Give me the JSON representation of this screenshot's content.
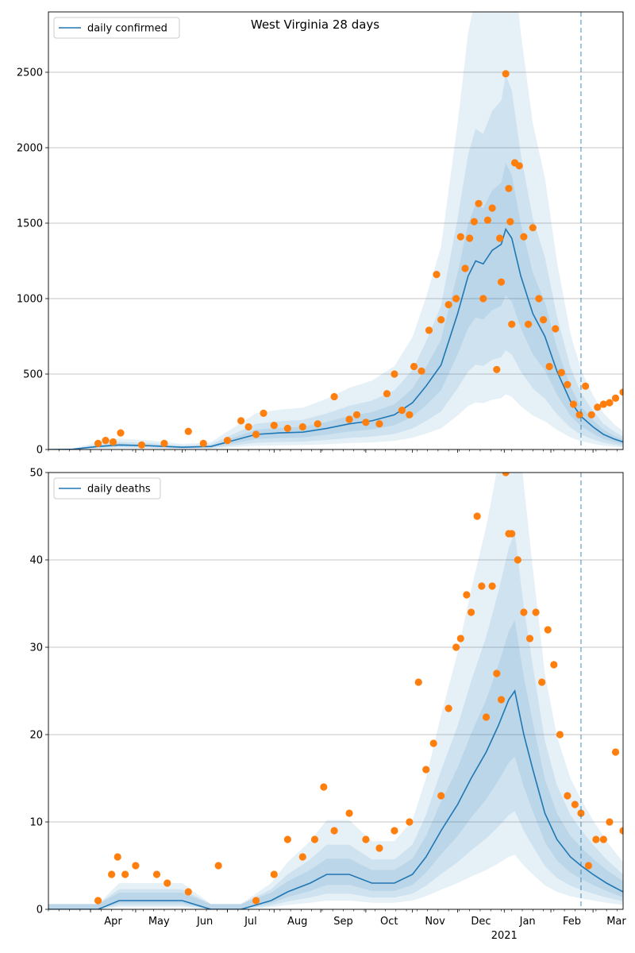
{
  "chart_data": [
    {
      "type": "line",
      "title": "West Virginia 28 days",
      "xlabel": "",
      "ylabel": "",
      "ylim": [
        0,
        2900
      ],
      "yticks": [
        0,
        500,
        1000,
        1500,
        2000,
        2500
      ],
      "grid": "y",
      "legend_location": "upper-left",
      "vline_date": "2021-02-21",
      "colors": {
        "line": "#1f77b4",
        "dots": "#ff7f0e",
        "band": "#1f77b4",
        "vline": "#1f77b4"
      },
      "series": [
        {
          "name": "daily confirmed",
          "kind": "line",
          "x": [
            "2020-03-04",
            "2020-03-20",
            "2020-04-06",
            "2020-04-20",
            "2020-05-10",
            "2020-06-01",
            "2020-06-20",
            "2020-07-05",
            "2020-07-20",
            "2020-08-05",
            "2020-08-20",
            "2020-09-05",
            "2020-09-20",
            "2020-10-05",
            "2020-10-20",
            "2020-11-01",
            "2020-11-10",
            "2020-11-20",
            "2020-12-01",
            "2020-12-08",
            "2020-12-13",
            "2020-12-18",
            "2020-12-24",
            "2020-12-30",
            "2021-01-02",
            "2021-01-06",
            "2021-01-12",
            "2021-01-20",
            "2021-01-28",
            "2021-02-05",
            "2021-02-14",
            "2021-02-21",
            "2021-03-01",
            "2021-03-08",
            "2021-03-15",
            "2021-03-21"
          ],
          "y": [
            0,
            2,
            20,
            30,
            25,
            15,
            20,
            60,
            100,
            110,
            115,
            140,
            170,
            190,
            230,
            310,
            420,
            560,
            900,
            1150,
            1250,
            1230,
            1320,
            1360,
            1460,
            1400,
            1150,
            900,
            750,
            520,
            320,
            220,
            150,
            100,
            70,
            50
          ]
        },
        {
          "name": "",
          "kind": "scatter",
          "x": [
            "2020-04-06",
            "2020-04-11",
            "2020-04-16",
            "2020-04-21",
            "2020-05-05",
            "2020-05-20",
            "2020-06-05",
            "2020-06-15",
            "2020-07-01",
            "2020-07-10",
            "2020-07-15",
            "2020-07-20",
            "2020-07-25",
            "2020-08-01",
            "2020-08-10",
            "2020-08-20",
            "2020-08-30",
            "2020-09-10",
            "2020-09-20",
            "2020-09-25",
            "2020-10-01",
            "2020-10-10",
            "2020-10-15",
            "2020-10-20",
            "2020-10-25",
            "2020-10-30",
            "2020-11-02",
            "2020-11-07",
            "2020-11-12",
            "2020-11-17",
            "2020-11-20",
            "2020-11-25",
            "2020-11-30",
            "2020-12-03",
            "2020-12-06",
            "2020-12-09",
            "2020-12-12",
            "2020-12-15",
            "2020-12-18",
            "2020-12-21",
            "2020-12-24",
            "2020-12-27",
            "2020-12-29",
            "2020-12-30",
            "2021-01-02",
            "2021-01-04",
            "2021-01-05",
            "2021-01-06",
            "2021-01-08",
            "2021-01-11",
            "2021-01-14",
            "2021-01-17",
            "2021-01-20",
            "2021-01-24",
            "2021-01-27",
            "2021-01-31",
            "2021-02-04",
            "2021-02-08",
            "2021-02-12",
            "2021-02-16",
            "2021-02-20",
            "2021-02-24",
            "2021-02-28",
            "2021-03-04",
            "2021-03-08",
            "2021-03-12",
            "2021-03-16",
            "2021-03-21"
          ],
          "y": [
            40,
            60,
            50,
            110,
            30,
            40,
            120,
            40,
            60,
            190,
            150,
            100,
            240,
            160,
            140,
            150,
            170,
            350,
            200,
            230,
            180,
            170,
            370,
            500,
            260,
            230,
            550,
            520,
            790,
            1160,
            860,
            960,
            1000,
            1410,
            1200,
            1400,
            1510,
            1630,
            1000,
            1520,
            1600,
            530,
            1400,
            1110,
            2490,
            1730,
            1510,
            830,
            1900,
            1880,
            1410,
            830,
            1470,
            1000,
            860,
            550,
            800,
            510,
            430,
            300,
            230,
            420,
            230,
            280,
            300,
            310,
            340,
            380
          ]
        }
      ]
    },
    {
      "type": "line",
      "title": "",
      "xlabel": "",
      "ylabel": "",
      "ylim": [
        0,
        50
      ],
      "yticks": [
        0,
        10,
        20,
        30,
        40,
        50
      ],
      "xticks": [
        "Apr",
        "May",
        "Jun",
        "Jul",
        "Aug",
        "Sep",
        "Oct",
        "Nov",
        "Dec",
        "Jan",
        "Feb",
        "Mar"
      ],
      "x_year_label": "2021",
      "grid": "y",
      "legend_location": "upper-left",
      "vline_date": "2021-02-21",
      "colors": {
        "line": "#1f77b4",
        "dots": "#ff7f0e",
        "band": "#1f77b4",
        "vline": "#1f77b4"
      },
      "series": [
        {
          "name": "daily deaths",
          "kind": "line",
          "x": [
            "2020-03-04",
            "2020-04-06",
            "2020-04-20",
            "2020-05-10",
            "2020-06-01",
            "2020-06-20",
            "2020-07-10",
            "2020-07-30",
            "2020-08-10",
            "2020-08-25",
            "2020-09-05",
            "2020-09-20",
            "2020-10-05",
            "2020-10-20",
            "2020-11-01",
            "2020-11-10",
            "2020-11-20",
            "2020-12-01",
            "2020-12-10",
            "2020-12-20",
            "2020-12-28",
            "2021-01-04",
            "2021-01-08",
            "2021-01-14",
            "2021-01-20",
            "2021-01-28",
            "2021-02-05",
            "2021-02-14",
            "2021-02-21",
            "2021-03-01",
            "2021-03-10",
            "2021-03-21"
          ],
          "y": [
            0,
            0,
            1,
            1,
            1,
            0,
            0,
            1,
            2,
            3,
            4,
            4,
            3,
            3,
            4,
            6,
            9,
            12,
            15,
            18,
            21,
            24,
            25,
            20,
            16,
            11,
            8,
            6,
            5,
            4,
            3,
            2
          ]
        },
        {
          "name": "",
          "kind": "scatter",
          "x": [
            "2020-04-06",
            "2020-04-15",
            "2020-04-19",
            "2020-04-24",
            "2020-05-01",
            "2020-05-15",
            "2020-05-22",
            "2020-06-05",
            "2020-06-25",
            "2020-07-20",
            "2020-08-01",
            "2020-08-10",
            "2020-08-20",
            "2020-08-28",
            "2020-09-03",
            "2020-09-10",
            "2020-09-20",
            "2020-10-01",
            "2020-10-10",
            "2020-10-20",
            "2020-10-30",
            "2020-11-05",
            "2020-11-10",
            "2020-11-15",
            "2020-11-20",
            "2020-11-25",
            "2020-11-30",
            "2020-12-03",
            "2020-12-07",
            "2020-12-10",
            "2020-12-14",
            "2020-12-17",
            "2020-12-20",
            "2020-12-24",
            "2020-12-27",
            "2020-12-30",
            "2021-01-02",
            "2021-01-04",
            "2021-01-06",
            "2021-01-10",
            "2021-01-14",
            "2021-01-18",
            "2021-01-22",
            "2021-01-26",
            "2021-01-30",
            "2021-02-03",
            "2021-02-07",
            "2021-02-12",
            "2021-02-17",
            "2021-02-21",
            "2021-02-26",
            "2021-03-03",
            "2021-03-08",
            "2021-03-12",
            "2021-03-16",
            "2021-03-21"
          ],
          "y": [
            1,
            4,
            6,
            4,
            5,
            4,
            3,
            2,
            5,
            1,
            4,
            8,
            6,
            8,
            14,
            9,
            11,
            8,
            7,
            9,
            10,
            26,
            16,
            19,
            13,
            23,
            30,
            31,
            36,
            34,
            45,
            37,
            22,
            37,
            27,
            24,
            50,
            43,
            43,
            40,
            34,
            31,
            34,
            26,
            32,
            28,
            20,
            13,
            12,
            11,
            5,
            8,
            8,
            10,
            18,
            9
          ]
        }
      ]
    }
  ]
}
